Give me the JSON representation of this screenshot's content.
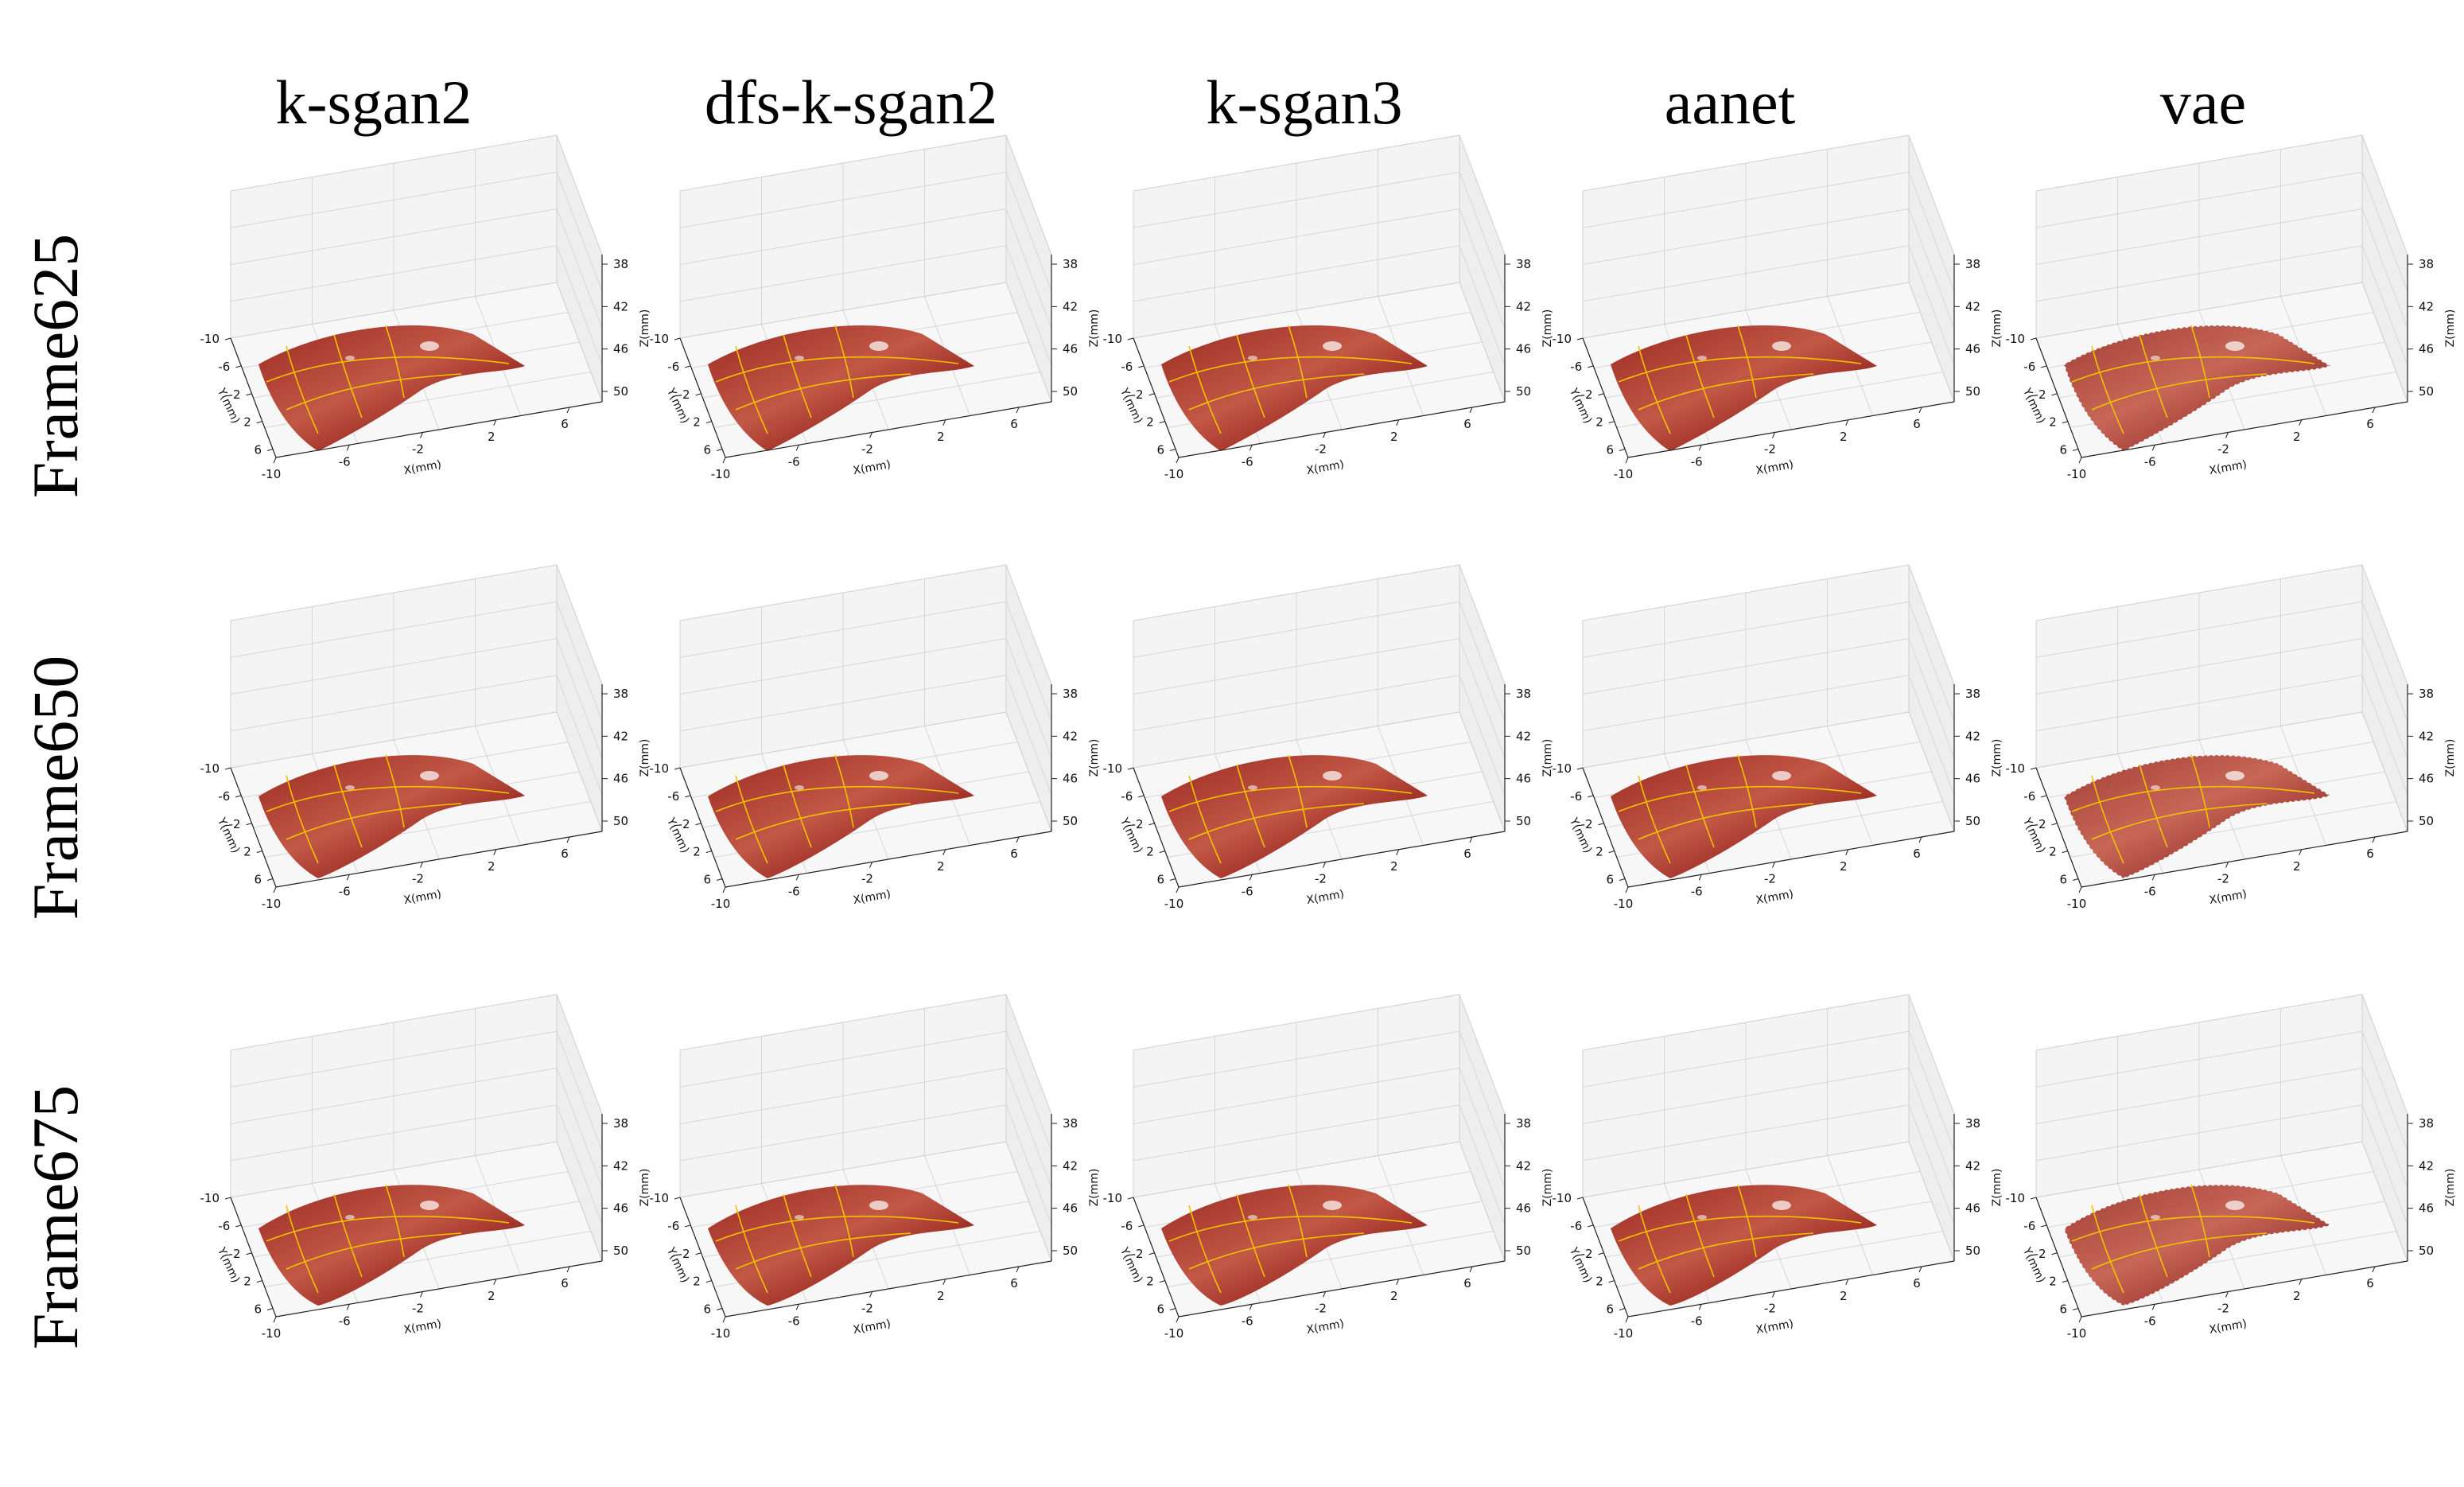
{
  "chart_data": {
    "type": "surface-3d-grid",
    "columns": [
      "k-sgan2",
      "dfs-k-sgan2",
      "k-sgan3",
      "aanet",
      "vae"
    ],
    "rows": [
      "Frame625",
      "Frame650",
      "Frame675"
    ],
    "axes": {
      "x": {
        "label": "X(mm)",
        "ticks": [
          "-10",
          "-6",
          "-2",
          "2",
          "6"
        ],
        "range": [
          -10,
          8
        ]
      },
      "y": {
        "label": "Y(mm)",
        "ticks": [
          "-10",
          "-6",
          "-2",
          "2",
          "6"
        ],
        "range": [
          -10,
          8
        ]
      },
      "z": {
        "label": "Z(mm)",
        "ticks": [
          "38",
          "42",
          "46",
          "50"
        ],
        "range": [
          38,
          50
        ]
      }
    },
    "grid": true,
    "surface_colors": {
      "tissue_dark": "#6e1414",
      "tissue_mid": "#9a2a22",
      "tissue_light": "#c25846",
      "gridline": "#f2c200"
    }
  }
}
